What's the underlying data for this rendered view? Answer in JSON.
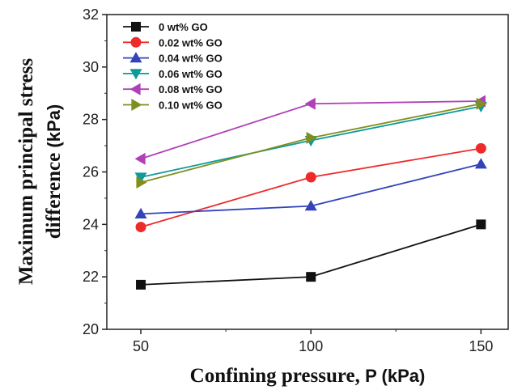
{
  "chart_data": {
    "type": "line",
    "xlabel_main": "Confining pressure, ",
    "xlabel_unit": "P (kPa)",
    "ylabel_line1": "Maximum principal stress",
    "ylabel_line2_main": "difference ",
    "ylabel_line2_unit": "(kPa)",
    "x": [
      50,
      100,
      150
    ],
    "x_ticks": [
      "50",
      "100",
      "150"
    ],
    "y_ticks": [
      "20",
      "22",
      "24",
      "26",
      "28",
      "30",
      "32"
    ],
    "xlim": [
      40,
      158
    ],
    "ylim": [
      20,
      32
    ],
    "legend_position": "top-left",
    "grid": false,
    "series": [
      {
        "name": "0 wt% GO",
        "color": "#111111",
        "marker": "square",
        "values": [
          21.7,
          22.0,
          24.0
        ]
      },
      {
        "name": "0.02 wt% GO",
        "color": "#ee2b2b",
        "marker": "circle",
        "values": [
          23.9,
          25.8,
          26.9
        ]
      },
      {
        "name": "0.04 wt% GO",
        "color": "#3344bb",
        "marker": "triangle-up",
        "values": [
          24.4,
          24.7,
          26.3
        ]
      },
      {
        "name": "0.06 wt% GO",
        "color": "#0e9a9a",
        "marker": "triangle-down",
        "values": [
          25.8,
          27.2,
          28.5
        ]
      },
      {
        "name": "0.08 wt% GO",
        "color": "#b040b8",
        "marker": "triangle-left",
        "values": [
          26.5,
          28.6,
          28.7
        ]
      },
      {
        "name": "0.10 wt% GO",
        "color": "#7f8f1f",
        "marker": "triangle-right",
        "values": [
          25.6,
          27.3,
          28.6
        ]
      }
    ]
  }
}
